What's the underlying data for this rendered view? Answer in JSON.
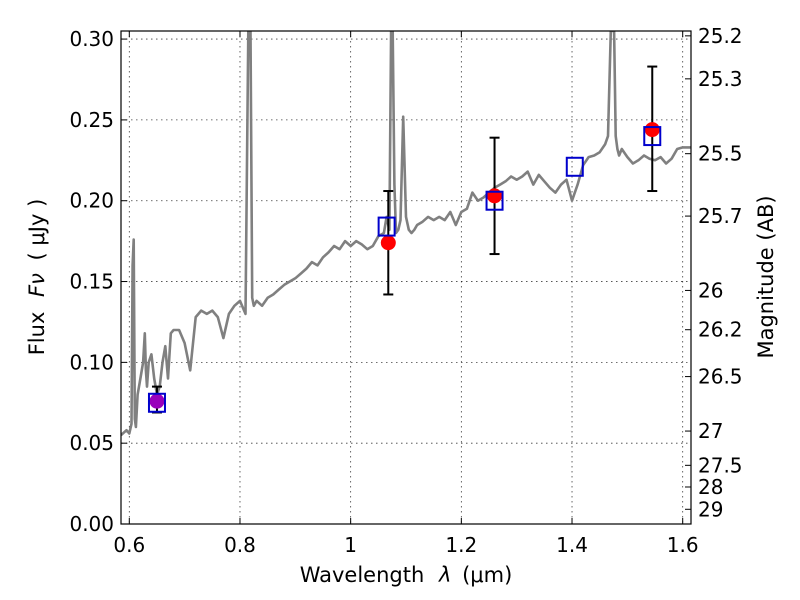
{
  "chart_data": {
    "type": "scatter",
    "xlabel_text": "Wavelength",
    "xlabel_symbol": "λ",
    "xlabel_unit": "(μm)",
    "ylabel_text": "Flux",
    "ylabel_symbol": "Fν",
    "ylabel_unit": "( μJy )",
    "y2label": "Magnitude (AB)",
    "xlim": [
      0.585,
      1.615
    ],
    "ylim": [
      0.0,
      0.305
    ],
    "grid": true,
    "x_ticks": [
      0.6,
      0.8,
      1.0,
      1.2,
      1.4,
      1.6
    ],
    "x_tick_labels": [
      "0.6",
      "0.8",
      "1",
      "1.2",
      "1.4",
      "1.6"
    ],
    "y_ticks": [
      0.0,
      0.05,
      0.1,
      0.15,
      0.2,
      0.25,
      0.3
    ],
    "y_tick_labels": [
      "0.00",
      "0.05",
      "0.10",
      "0.15",
      "0.20",
      "0.25",
      "0.30"
    ],
    "y2_ticks": [
      {
        "label": "25.2",
        "flux": 0.302
      },
      {
        "label": "25.3",
        "flux": 0.2754
      },
      {
        "label": "25.5",
        "flux": 0.2291
      },
      {
        "label": "25.7",
        "flux": 0.1905
      },
      {
        "label": "26",
        "flux": 0.1445
      },
      {
        "label": "26.2",
        "flux": 0.1202
      },
      {
        "label": "26.5",
        "flux": 0.0912
      },
      {
        "label": "27",
        "flux": 0.0575
      },
      {
        "label": "27.5",
        "flux": 0.0363
      },
      {
        "label": "28",
        "flux": 0.0229
      },
      {
        "label": "29",
        "flux": 0.0091
      }
    ],
    "colors": {
      "spectrum": "#808080",
      "observed": "#ff0000",
      "observed_first": "#9900bb",
      "model": "#0000cc",
      "errorbar": "#000000"
    },
    "spectrum": {
      "x": [
        0.585,
        0.595,
        0.6,
        0.604,
        0.606,
        0.608,
        0.61,
        0.612,
        0.615,
        0.62,
        0.625,
        0.628,
        0.63,
        0.632,
        0.635,
        0.64,
        0.645,
        0.65,
        0.655,
        0.66,
        0.665,
        0.67,
        0.675,
        0.68,
        0.69,
        0.7,
        0.71,
        0.72,
        0.73,
        0.74,
        0.75,
        0.76,
        0.77,
        0.78,
        0.79,
        0.8,
        0.81,
        0.815,
        0.817,
        0.819,
        0.822,
        0.825,
        0.83,
        0.84,
        0.85,
        0.86,
        0.87,
        0.88,
        0.89,
        0.9,
        0.91,
        0.92,
        0.93,
        0.94,
        0.95,
        0.96,
        0.97,
        0.98,
        0.99,
        1.0,
        1.01,
        1.02,
        1.03,
        1.04,
        1.05,
        1.06,
        1.065,
        1.07,
        1.073,
        1.076,
        1.079,
        1.082,
        1.086,
        1.09,
        1.095,
        1.1,
        1.105,
        1.11,
        1.115,
        1.12,
        1.13,
        1.14,
        1.15,
        1.16,
        1.17,
        1.18,
        1.19,
        1.2,
        1.21,
        1.22,
        1.23,
        1.24,
        1.25,
        1.26,
        1.27,
        1.28,
        1.29,
        1.3,
        1.31,
        1.32,
        1.33,
        1.34,
        1.35,
        1.36,
        1.37,
        1.38,
        1.39,
        1.4,
        1.41,
        1.42,
        1.43,
        1.44,
        1.45,
        1.46,
        1.465,
        1.47,
        1.473,
        1.476,
        1.479,
        1.482,
        1.485,
        1.49,
        1.5,
        1.51,
        1.52,
        1.53,
        1.54,
        1.55,
        1.56,
        1.57,
        1.58,
        1.59,
        1.6,
        1.61,
        1.615
      ],
      "y": [
        0.055,
        0.058,
        0.056,
        0.062,
        0.16,
        0.176,
        0.065,
        0.06,
        0.08,
        0.09,
        0.1,
        0.118,
        0.095,
        0.085,
        0.1,
        0.105,
        0.09,
        0.08,
        0.085,
        0.1,
        0.11,
        0.09,
        0.118,
        0.12,
        0.12,
        0.112,
        0.095,
        0.128,
        0.132,
        0.13,
        0.132,
        0.128,
        0.115,
        0.13,
        0.135,
        0.138,
        0.13,
        0.305,
        0.305,
        0.305,
        0.14,
        0.135,
        0.138,
        0.135,
        0.14,
        0.142,
        0.145,
        0.148,
        0.15,
        0.152,
        0.155,
        0.158,
        0.162,
        0.16,
        0.165,
        0.168,
        0.172,
        0.17,
        0.175,
        0.172,
        0.175,
        0.173,
        0.17,
        0.172,
        0.178,
        0.18,
        0.19,
        0.182,
        0.305,
        0.305,
        0.21,
        0.18,
        0.182,
        0.188,
        0.252,
        0.19,
        0.182,
        0.18,
        0.182,
        0.185,
        0.187,
        0.19,
        0.188,
        0.19,
        0.188,
        0.193,
        0.185,
        0.193,
        0.195,
        0.205,
        0.2,
        0.202,
        0.205,
        0.208,
        0.21,
        0.212,
        0.215,
        0.213,
        0.215,
        0.218,
        0.21,
        0.216,
        0.212,
        0.208,
        0.205,
        0.21,
        0.213,
        0.2,
        0.21,
        0.222,
        0.227,
        0.228,
        0.23,
        0.235,
        0.24,
        0.305,
        0.305,
        0.305,
        0.24,
        0.232,
        0.228,
        0.232,
        0.227,
        0.223,
        0.225,
        0.228,
        0.226,
        0.225,
        0.227,
        0.223,
        0.226,
        0.232,
        0.233,
        0.233,
        0.233
      ]
    },
    "observed": {
      "x": [
        0.65,
        1.068,
        1.26,
        1.545
      ],
      "y": [
        0.076,
        0.174,
        0.203,
        0.244
      ],
      "yerr_low": [
        0.069,
        0.142,
        0.167,
        0.206
      ],
      "yerr_high": [
        0.085,
        0.206,
        0.239,
        0.283
      ]
    },
    "model": {
      "x": [
        0.65,
        1.065,
        1.26,
        1.405,
        1.545
      ],
      "y": [
        0.075,
        0.184,
        0.2,
        0.221,
        0.24
      ]
    }
  }
}
